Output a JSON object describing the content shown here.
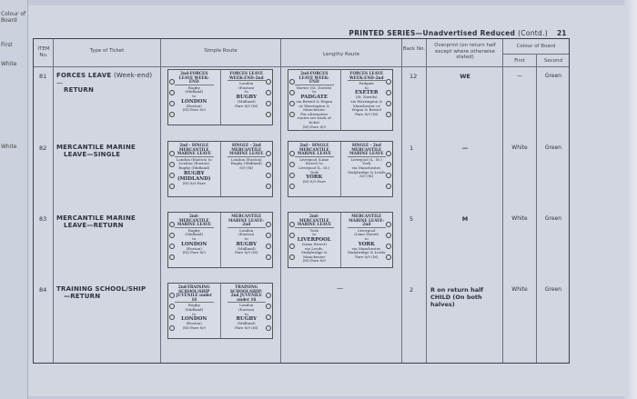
{
  "previous_page": {
    "header": "Colour of Board",
    "first": "First",
    "rows": [
      "White",
      "White"
    ]
  },
  "header": {
    "title_bold": "PRINTED SERIES—Unadvertised Reduced",
    "title_suffix": "(Contd.)",
    "page_number": "21"
  },
  "columns": {
    "item": "ITEM No.",
    "type": "Type of Ticket",
    "simple": "Simple Route",
    "lengthy": "Lengthy Route",
    "back": "Back No.",
    "overprint": "Overprint (on return half except where otherwise stated)",
    "colour": "Colour of Board",
    "first": "First",
    "second": "Second"
  },
  "rows": [
    {
      "item": "81",
      "type_bold": "FORCES LEAVE",
      "type_normal": "(Week-end)—",
      "type_line2": "RETURN",
      "back": "12",
      "overprint": "WE",
      "overprint2": "",
      "first": "—",
      "second": "Green",
      "simple": [
        [
          "2nd-FORCES LEAVE WEEK-END",
          "Rugby",
          "(Midland)",
          "to",
          "LONDON",
          "(Euston)",
          "(M)   Fare 8/9"
        ],
        [
          "FORCES LEAVE WEEK-END-2nd",
          "London",
          "(Euston)",
          "to",
          "RUGBY",
          "(Midland)",
          "Fare 8/9   (M)"
        ]
      ],
      "lengthy": [
        [
          "2nd-FORCES LEAVE WEEK-END",
          "Exeter (St. Davids)",
          "to",
          "PADGATE",
          "via Bristol & Wigan or Warrington & Manchester",
          "For alternative routes see back of ticket",
          "(M)   Fare 8/9"
        ],
        [
          "FORCES LEAVE WEEK-END-2nd",
          "Padgate",
          "to",
          "EXETER",
          "(St. Davids)",
          "via Warrington & Manchester or Wigan & Bristol",
          "Fare 8/9   (M)"
        ]
      ]
    },
    {
      "item": "82",
      "type_bold": "MERCANTILE MARINE",
      "type_normal": "",
      "type_line2": "LEAVE—SINGLE",
      "back": "1",
      "overprint": "—",
      "overprint2": "",
      "first": "White",
      "second": "Green",
      "simple": [
        [
          "2nd - SINGLE  MERCANTILE MARINE LEAVE",
          "London (Euston) to",
          "London (Euston)",
          "Rugby (Midland)",
          "RUGBY (MIDLAND)",
          "(M)  8/9  Fare"
        ],
        [
          "SINGLE - 2nd  MERCANTILE MARINE LEAVE",
          "",
          "London (Euston)",
          "Rugby (Midland)",
          "",
          "8/9   (M)"
        ]
      ],
      "lengthy": [
        [
          "2nd - SINGLE  MERCANTILE MARINE LEAVE",
          "Liverpool (Lime Street) to",
          "Liverpool (L. St.)",
          "York",
          "YORK",
          "(M)  8/9  Fare"
        ],
        [
          "SINGLE - 2nd  MERCANTILE MARINE LEAVE",
          "",
          "Liverpool (L. St.)",
          "York",
          "via Manchester, Stalybridge & Leeds",
          "8/9   (M)"
        ]
      ]
    },
    {
      "item": "83",
      "type_bold": "MERCANTILE MARINE",
      "type_normal": "",
      "type_line2": "LEAVE—RETURN",
      "back": "5",
      "overprint": "M",
      "overprint2": "",
      "first": "White",
      "second": "Green",
      "simple": [
        [
          "2nd-MERCANTILE MARINE LEAVE",
          "Rugby",
          "(Midland)",
          "to",
          "LONDON",
          "(Euston)",
          "(M)   Fare 8/9"
        ],
        [
          "MERCANTILE MARINE LEAVE-2nd",
          "London",
          "(Euston)",
          "to",
          "RUGBY",
          "(Midland)",
          "Fare 8/9   (M)"
        ]
      ],
      "lengthy": [
        [
          "2nd-MERCANTILE MARINE LEAVE",
          "York",
          "to",
          "LIVERPOOL",
          "(Lime Street)",
          "via Leeds, Stalybridge & Manchester",
          "(M)   Fare 8/9"
        ],
        [
          "MERCANTILE MARINE LEAVE-2nd",
          "Liverpool",
          "(Lime Street)",
          "to",
          "YORK",
          "via Manchester, Stalybridge & Leeds",
          "Fare 8/9   (M)"
        ]
      ]
    },
    {
      "item": "84",
      "type_bold": "TRAINING SCHOOL/SHIP",
      "type_normal": "",
      "type_line2": "—RETURN",
      "back": "2",
      "overprint": "R on return half",
      "overprint2": "CHILD (On both halves)",
      "first": "White",
      "second": "Green",
      "simple": [
        [
          "2nd-TRAINING SCHOOL/SHIP JUVENILE under 16",
          "Rugby",
          "(Midland)",
          "to",
          "LONDON",
          "(Euston)",
          "(M)   Fare 8/9"
        ],
        [
          "TRAINING SCHOOL/SHIP-2nd JUVENILE under 16",
          "London",
          "(Euston)",
          "to",
          "RUGBY",
          "(Midland)",
          "Fare 8/9   (M)"
        ]
      ],
      "lengthy_empty": "—"
    }
  ]
}
